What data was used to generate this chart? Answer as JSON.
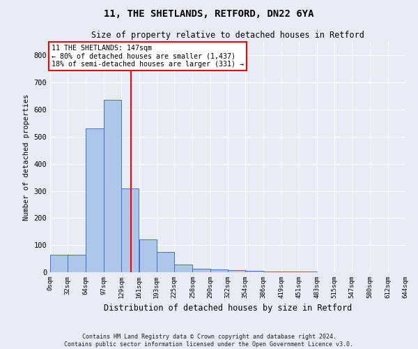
{
  "title": "11, THE SHETLANDS, RETFORD, DN22 6YA",
  "subtitle": "Size of property relative to detached houses in Retford",
  "xlabel": "Distribution of detached houses by size in Retford",
  "ylabel": "Number of detached properties",
  "bar_values": [
    65,
    65,
    530,
    635,
    310,
    120,
    75,
    28,
    14,
    10,
    7,
    5,
    3,
    2,
    2,
    1,
    1,
    0,
    0,
    0
  ],
  "bar_left_edges": [
    0,
    32,
    64,
    97,
    129,
    161,
    193,
    225,
    258,
    290,
    322,
    354,
    386,
    419,
    451,
    483,
    515,
    547,
    580,
    612
  ],
  "bar_widths": [
    32,
    32,
    33,
    32,
    32,
    32,
    32,
    33,
    32,
    32,
    32,
    32,
    33,
    32,
    32,
    32,
    32,
    33,
    32,
    32
  ],
  "xtick_labels": [
    "0sqm",
    "32sqm",
    "64sqm",
    "97sqm",
    "129sqm",
    "161sqm",
    "193sqm",
    "225sqm",
    "258sqm",
    "290sqm",
    "322sqm",
    "354sqm",
    "386sqm",
    "419sqm",
    "451sqm",
    "483sqm",
    "515sqm",
    "547sqm",
    "580sqm",
    "612sqm",
    "644sqm"
  ],
  "xtick_positions": [
    0,
    32,
    64,
    97,
    129,
    161,
    193,
    225,
    258,
    290,
    322,
    354,
    386,
    419,
    451,
    483,
    515,
    547,
    580,
    612,
    644
  ],
  "ylim": [
    0,
    850
  ],
  "xlim": [
    0,
    644
  ],
  "bar_color": "#aec6e8",
  "bar_edge_color": "#4472c4",
  "red_line_x": 147,
  "annotation_title": "11 THE SHETLANDS: 147sqm",
  "annotation_line1": "← 80% of detached houses are smaller (1,437)",
  "annotation_line2": "18% of semi-detached houses are larger (331) →",
  "footer_line1": "Contains HM Land Registry data © Crown copyright and database right 2024.",
  "footer_line2": "Contains public sector information licensed under the Open Government Licence v3.0.",
  "background_color": "#e8edf5",
  "plot_background_color": "#e8edf5",
  "grid_color": "#ffffff",
  "ytick_interval": 100,
  "title_fontsize": 10,
  "subtitle_fontsize": 8.5,
  "annotation_fontsize": 7.2,
  "ylabel_fontsize": 7.5,
  "xlabel_fontsize": 8.5,
  "xtick_fontsize": 6.5,
  "ytick_fontsize": 7.5
}
